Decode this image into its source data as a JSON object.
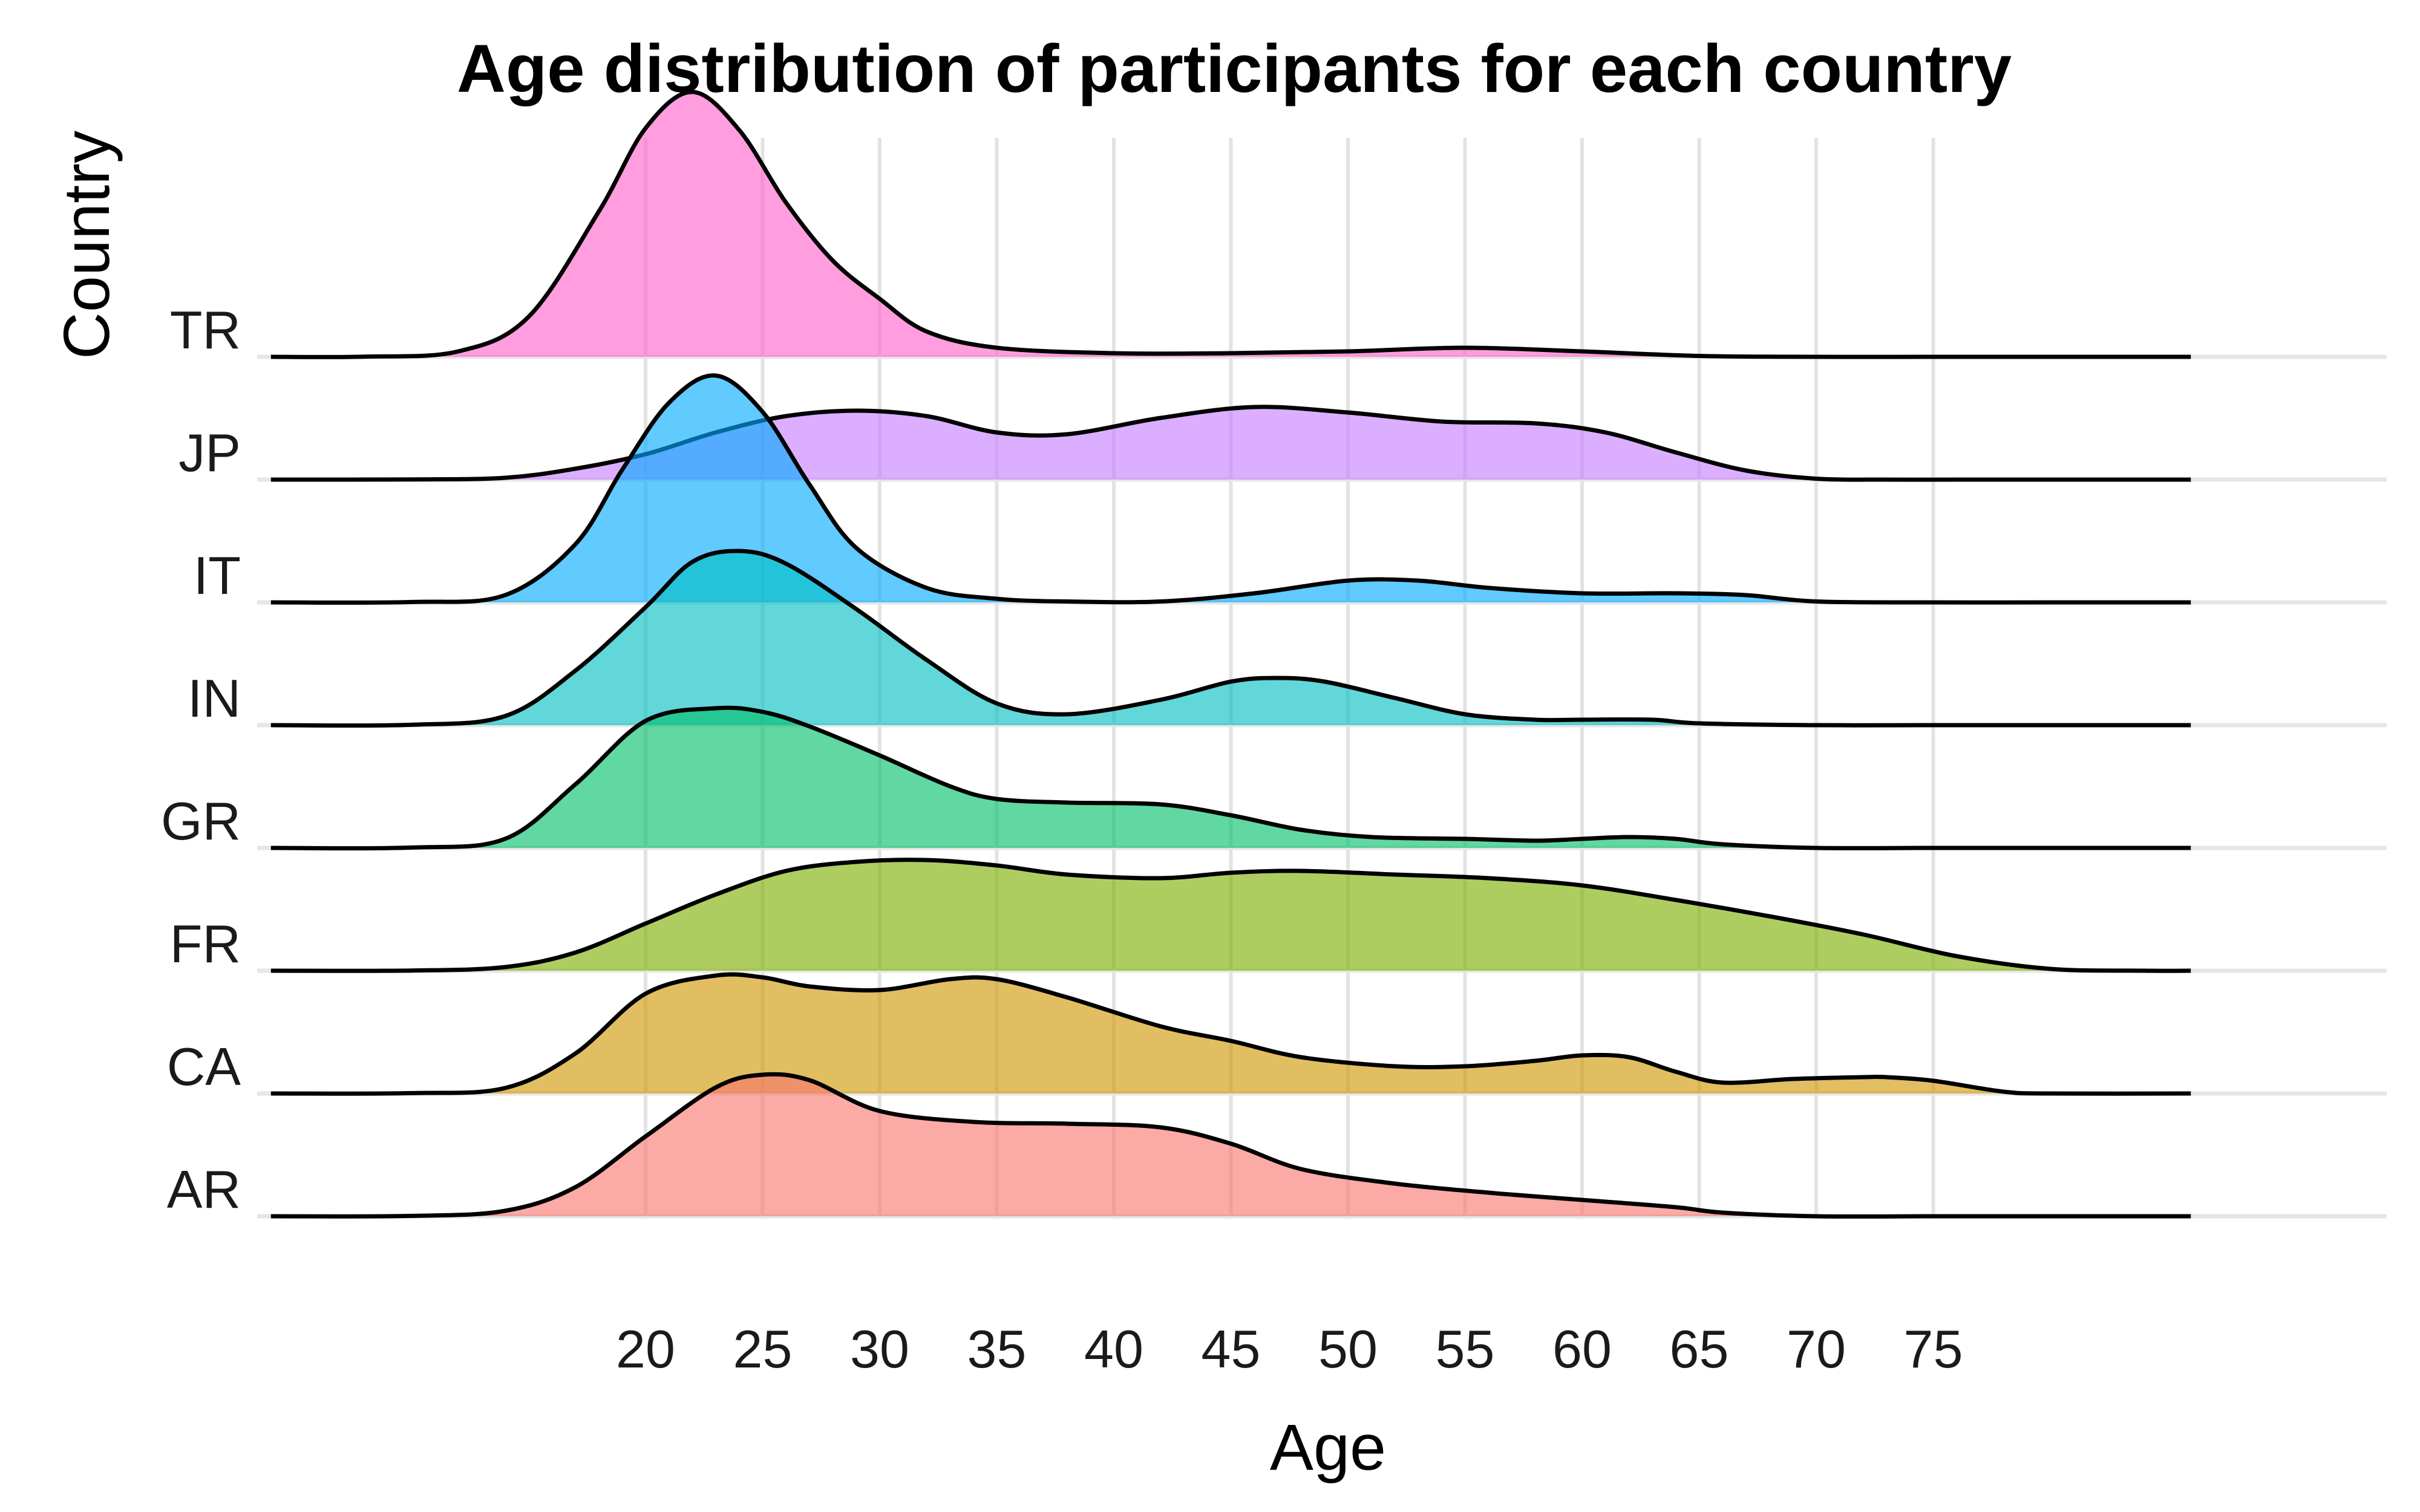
{
  "chart_data": {
    "type": "ridgeline",
    "title": "Age distribution of participants for each country",
    "xlabel": "Age",
    "ylabel": "Country",
    "x_ticks": [
      20,
      25,
      30,
      35,
      40,
      45,
      50,
      55,
      60,
      65,
      70,
      75
    ],
    "xlim": [
      4,
      86
    ],
    "grid": true,
    "series": [
      {
        "name": "AR",
        "color": "#F8766D",
        "x": [
          4,
          10,
          14,
          17,
          20,
          23,
          25,
          27,
          30,
          34,
          38,
          42,
          45,
          48,
          52,
          56,
          60,
          64,
          66,
          70,
          75,
          80,
          86
        ],
        "density": [
          0,
          0.002,
          0.03,
          0.16,
          0.44,
          0.71,
          0.78,
          0.75,
          0.58,
          0.52,
          0.51,
          0.49,
          0.4,
          0.26,
          0.18,
          0.13,
          0.09,
          0.05,
          0.02,
          0,
          0,
          0,
          0
        ]
      },
      {
        "name": "CA",
        "color": "#CD9600",
        "x": [
          4,
          10,
          14,
          17,
          20,
          23,
          25,
          27,
          30,
          33,
          35,
          38,
          42,
          45,
          48,
          52,
          55,
          58,
          60,
          62,
          64,
          66,
          69,
          72,
          73,
          75,
          78,
          80,
          86
        ],
        "density": [
          0,
          0.002,
          0.03,
          0.22,
          0.55,
          0.65,
          0.64,
          0.59,
          0.57,
          0.63,
          0.63,
          0.53,
          0.37,
          0.29,
          0.2,
          0.15,
          0.15,
          0.18,
          0.21,
          0.2,
          0.12,
          0.06,
          0.08,
          0.09,
          0.09,
          0.07,
          0.01,
          0,
          0
        ]
      },
      {
        "name": "FR",
        "color": "#7CAE00",
        "x": [
          4,
          10,
          14,
          17,
          20,
          23,
          26,
          29,
          32,
          35,
          38,
          42,
          45,
          48,
          52,
          56,
          60,
          64,
          68,
          72,
          76,
          80,
          84,
          86
        ],
        "density": [
          0,
          0.001,
          0.02,
          0.1,
          0.26,
          0.42,
          0.55,
          0.6,
          0.61,
          0.58,
          0.53,
          0.51,
          0.54,
          0.55,
          0.53,
          0.51,
          0.47,
          0.39,
          0.3,
          0.2,
          0.08,
          0.01,
          0,
          0
        ]
      },
      {
        "name": "GR",
        "color": "#00BE67",
        "x": [
          4,
          10,
          14,
          17,
          20,
          23,
          25,
          27,
          30,
          33,
          35,
          38,
          42,
          45,
          48,
          51,
          55,
          58,
          60,
          62,
          64,
          66,
          70,
          75,
          80,
          86
        ],
        "density": [
          0,
          0.002,
          0.05,
          0.35,
          0.7,
          0.77,
          0.75,
          0.67,
          0.51,
          0.34,
          0.27,
          0.25,
          0.24,
          0.18,
          0.1,
          0.06,
          0.05,
          0.04,
          0.05,
          0.06,
          0.05,
          0.02,
          0,
          0,
          0,
          0
        ]
      },
      {
        "name": "IN",
        "color": "#00BFC4",
        "x": [
          4,
          10,
          14,
          17,
          20,
          22,
          24,
          26,
          29,
          32,
          35,
          38,
          42,
          45,
          47,
          49,
          52,
          55,
          58,
          60,
          63,
          65,
          70,
          75,
          80,
          86
        ],
        "density": [
          0,
          0.002,
          0.05,
          0.3,
          0.65,
          0.9,
          0.96,
          0.89,
          0.64,
          0.36,
          0.12,
          0.06,
          0.14,
          0.24,
          0.26,
          0.24,
          0.15,
          0.06,
          0.03,
          0.03,
          0.03,
          0.01,
          0,
          0,
          0,
          0
        ]
      },
      {
        "name": "IT",
        "color": "#00A9FF",
        "x": [
          4,
          10,
          14,
          17,
          19,
          21,
          23,
          25,
          27,
          29,
          32,
          35,
          38,
          42,
          46,
          50,
          53,
          56,
          60,
          64,
          67,
          70,
          75,
          80,
          86
        ],
        "density": [
          0,
          0.002,
          0.04,
          0.32,
          0.73,
          1.1,
          1.25,
          1.05,
          0.65,
          0.3,
          0.08,
          0.02,
          0.005,
          0.005,
          0.05,
          0.12,
          0.12,
          0.08,
          0.05,
          0.05,
          0.04,
          0.005,
          0,
          0,
          0
        ]
      },
      {
        "name": "JP",
        "color": "#C77CFF",
        "x": [
          4,
          10,
          14,
          17,
          20,
          23,
          26,
          29,
          32,
          35,
          38,
          42,
          46,
          50,
          54,
          58,
          61,
          64,
          67,
          70,
          73,
          76,
          80,
          86
        ],
        "density": [
          0,
          0.001,
          0.01,
          0.06,
          0.14,
          0.26,
          0.35,
          0.38,
          0.35,
          0.26,
          0.25,
          0.34,
          0.4,
          0.37,
          0.32,
          0.31,
          0.26,
          0.15,
          0.05,
          0.005,
          0,
          0,
          0,
          0
        ]
      },
      {
        "name": "TR",
        "color": "#FF61CC",
        "x": [
          4,
          8,
          12,
          15,
          18,
          20,
          22,
          24,
          26,
          28,
          30,
          32,
          35,
          40,
          45,
          50,
          55,
          60,
          65,
          70,
          75,
          80,
          86
        ],
        "density": [
          0,
          0.001,
          0.03,
          0.22,
          0.8,
          1.26,
          1.46,
          1.25,
          0.85,
          0.53,
          0.32,
          0.14,
          0.05,
          0.02,
          0.02,
          0.03,
          0.05,
          0.03,
          0.005,
          0,
          0,
          0,
          0
        ]
      }
    ]
  }
}
